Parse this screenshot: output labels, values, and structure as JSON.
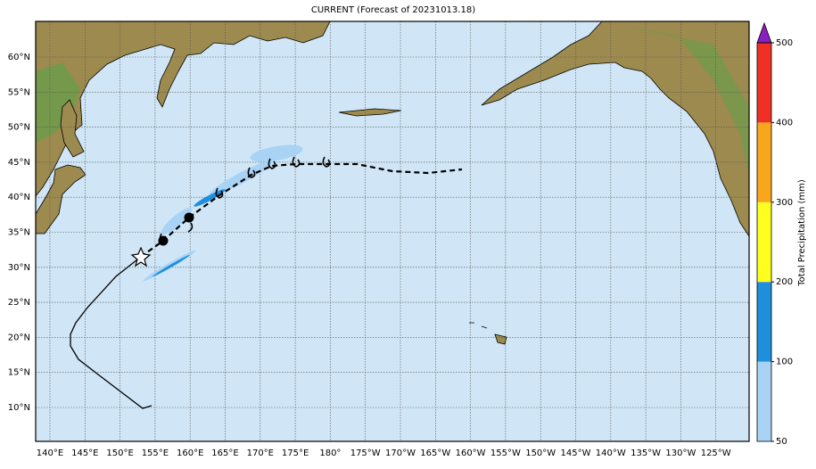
{
  "title": "CURRENT (Forecast of 20231013.18)",
  "lon_labels": [
    "140°E",
    "145°E",
    "150°E",
    "155°E",
    "160°E",
    "165°E",
    "170°E",
    "175°E",
    "180°",
    "175°W",
    "170°W",
    "165°W",
    "160°W",
    "155°W",
    "150°W",
    "145°W",
    "140°W",
    "135°W",
    "130°W",
    "125°W"
  ],
  "lat_labels": [
    "60°N",
    "55°N",
    "50°N",
    "45°N",
    "40°N",
    "35°N",
    "30°N",
    "25°N",
    "20°N",
    "15°N",
    "10°N"
  ],
  "colorbar": {
    "label": "Total Precipitation (mm)",
    "ticks": [
      50,
      100,
      200,
      300,
      400,
      500
    ],
    "colors": [
      "#a9d3f5",
      "#1f8fdc",
      "#ffff1f",
      "#f9a61f",
      "#ee3124"
    ],
    "extend_color": "#8b1fbf"
  }
}
